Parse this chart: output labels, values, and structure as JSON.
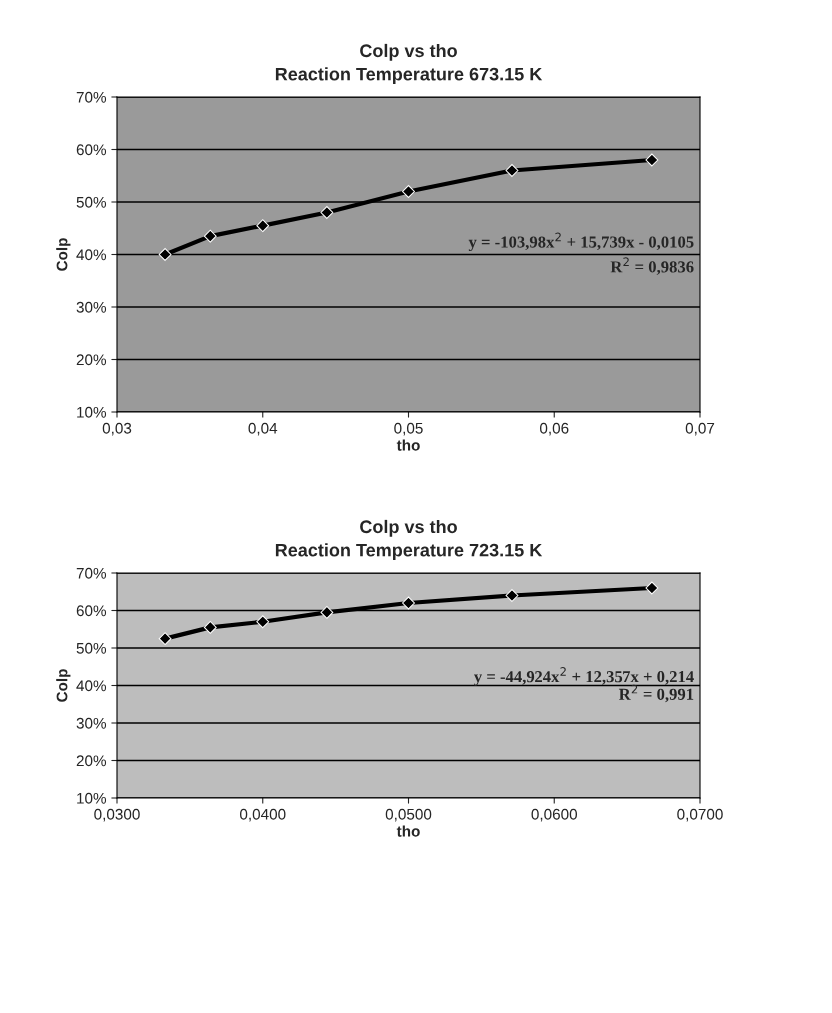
{
  "chart_data": [
    {
      "type": "line",
      "title": "Colp vs tho\nReaction Temperature 673.15 K",
      "xlabel": "tho",
      "ylabel": "Colp",
      "x": [
        0.0333,
        0.0364,
        0.04,
        0.0444,
        0.05,
        0.0571,
        0.0667
      ],
      "series": [
        {
          "color": "#000000",
          "values": [
            0.4,
            0.435,
            0.455,
            0.48,
            0.52,
            0.56,
            0.58
          ]
        }
      ],
      "marker": "diamond",
      "line_style": "solid",
      "grid": "y",
      "legend": false,
      "xlim": [
        0.03,
        0.07
      ],
      "xticks": [
        {
          "value": 0.03,
          "label": "0,03"
        },
        {
          "value": 0.04,
          "label": "0,04"
        },
        {
          "value": 0.05,
          "label": "0,05"
        },
        {
          "value": 0.06,
          "label": "0,06"
        },
        {
          "value": 0.07,
          "label": "0,07"
        }
      ],
      "ylim": [
        0.1,
        0.7
      ],
      "yticks": [
        {
          "value": 0.1,
          "label": "10%"
        },
        {
          "value": 0.2,
          "label": "20%"
        },
        {
          "value": 0.3,
          "label": "30%"
        },
        {
          "value": 0.4,
          "label": "40%"
        },
        {
          "value": 0.5,
          "label": "50%"
        },
        {
          "value": 0.6,
          "label": "60%"
        },
        {
          "value": 0.7,
          "label": "70%"
        }
      ],
      "annotations": [
        "y = -103,98x$^{2}$ + 15,739x - 0,0105",
        "R$^{2}$ = 0,9836"
      ]
    },
    {
      "type": "line",
      "title": "Colp vs tho\nReaction Temperature 723.15 K",
      "xlabel": "tho",
      "ylabel": "Colp",
      "x": [
        0.0333,
        0.0364,
        0.04,
        0.0444,
        0.05,
        0.0571,
        0.0667
      ],
      "series": [
        {
          "color": "#000000",
          "values": [
            0.525,
            0.555,
            0.57,
            0.595,
            0.62,
            0.64,
            0.66
          ]
        }
      ],
      "marker": "diamond",
      "line_style": "solid",
      "grid": "y",
      "legend": false,
      "xlim": [
        0.03,
        0.07
      ],
      "xticks": [
        {
          "value": 0.03,
          "label": "0,0300"
        },
        {
          "value": 0.04,
          "label": "0,0400"
        },
        {
          "value": 0.05,
          "label": "0,0500"
        },
        {
          "value": 0.06,
          "label": "0,0600"
        },
        {
          "value": 0.07,
          "label": "0,0700"
        }
      ],
      "ylim": [
        0.1,
        0.7
      ],
      "yticks": [
        {
          "value": 0.1,
          "label": "10%"
        },
        {
          "value": 0.2,
          "label": "20%"
        },
        {
          "value": 0.3,
          "label": "30%"
        },
        {
          "value": 0.4,
          "label": "40%"
        },
        {
          "value": 0.5,
          "label": "50%"
        },
        {
          "value": 0.6,
          "label": "60%"
        },
        {
          "value": 0.7,
          "label": "70%"
        }
      ],
      "annotations": [
        "y = -44,924x$^{2}$ + 12,357x + 0,214",
        "R$^{2}$ = 0,991"
      ]
    }
  ]
}
